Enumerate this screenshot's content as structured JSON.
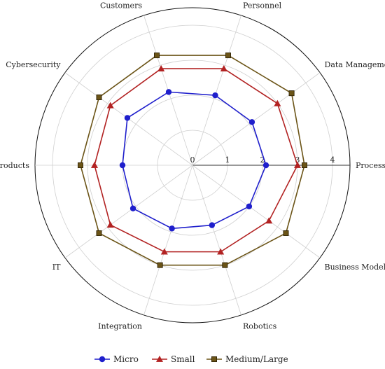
{
  "chart_data": {
    "type": "radar",
    "axes": [
      "Processes",
      "Data Management",
      "Personnel",
      "Customers",
      "Cybersecurity",
      "Products",
      "IT",
      "Integration",
      "Robotics",
      "Business Model"
    ],
    "radial_ticks": [
      "0",
      "1",
      "2",
      "3",
      "4"
    ],
    "rlim": [
      0,
      4.5
    ],
    "series": [
      {
        "name": "Micro",
        "color": "#1f1fcc",
        "marker": "circle",
        "values": [
          2.1,
          2.1,
          2.1,
          2.2,
          2.3,
          2.0,
          2.1,
          1.9,
          1.8,
          2.0
        ]
      },
      {
        "name": "Small",
        "color": "#b22222",
        "marker": "triangle",
        "values": [
          3.0,
          3.0,
          2.9,
          2.9,
          2.9,
          2.8,
          2.9,
          2.6,
          2.6,
          2.7
        ]
      },
      {
        "name": "Medium/Large",
        "color": "#6b5417",
        "marker": "square",
        "values": [
          3.2,
          3.5,
          3.3,
          3.3,
          3.3,
          3.2,
          3.3,
          3.0,
          3.0,
          3.3
        ]
      }
    ],
    "grid": true,
    "legend": "bottom"
  }
}
